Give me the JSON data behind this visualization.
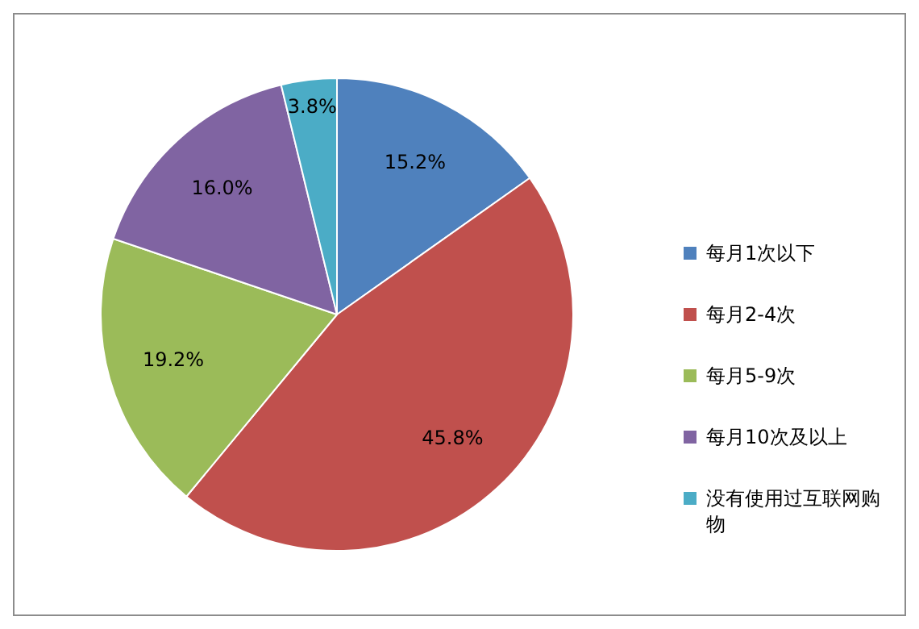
{
  "chart_data": {
    "type": "pie",
    "categories": [
      "每月1次以下",
      "每月2-4次",
      "每月5-9次",
      "每月10次及以上",
      "没有使用过互联网购物"
    ],
    "values": [
      15.2,
      45.8,
      19.2,
      16.0,
      3.8
    ],
    "value_labels": [
      "15.2%",
      "45.8%",
      "19.2%",
      "16.0%",
      "3.8%"
    ],
    "colors": [
      "#4f81bd",
      "#c0504d",
      "#9bbb59",
      "#8064a2",
      "#4bacc6"
    ],
    "legend": "right"
  }
}
